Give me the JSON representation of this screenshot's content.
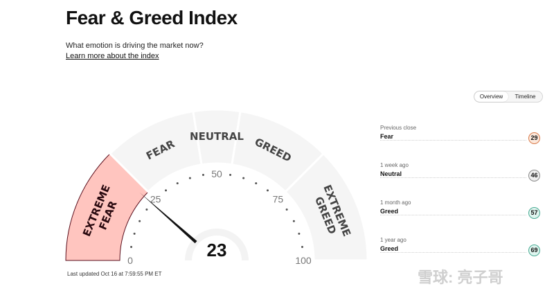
{
  "header": {
    "title": "Fear & Greed Index",
    "subtitle": "What emotion is driving the market now?",
    "learn_link": "Learn more about the index"
  },
  "view_toggle": {
    "options": [
      "Overview",
      "Timeline"
    ],
    "selected": "Overview"
  },
  "gauge": {
    "value": 23,
    "value_text": "23",
    "scale_min": 0,
    "scale_max": 100,
    "ticks": [
      "0",
      "25",
      "50",
      "75",
      "100"
    ],
    "segments": [
      {
        "label": "EXTREME FEAR",
        "from": 0,
        "to": 25,
        "active": true
      },
      {
        "label": "FEAR",
        "from": 25,
        "to": 45,
        "active": false
      },
      {
        "label": "NEUTRAL",
        "from": 45,
        "to": 55,
        "active": false
      },
      {
        "label": "GREED",
        "from": 55,
        "to": 75,
        "active": false
      },
      {
        "label": "EXTREME GREED",
        "from": 75,
        "to": 100,
        "active": false
      }
    ],
    "colors": {
      "inactive_fill": "#f5f5f5",
      "active_fill": "#ffc5bf",
      "active_stroke": "#5a0e1c",
      "needle": "#111111"
    }
  },
  "history": [
    {
      "label": "Previous close",
      "sentiment": "Fear",
      "value": "29",
      "badge_bg": "#fde9dc",
      "badge_border": "#d87a4a"
    },
    {
      "label": "1 week ago",
      "sentiment": "Neutral",
      "value": "46",
      "badge_bg": "#efefef",
      "badge_border": "#8a8a8a"
    },
    {
      "label": "1 month ago",
      "sentiment": "Greed",
      "value": "57",
      "badge_bg": "#dff5ef",
      "badge_border": "#4aab94"
    },
    {
      "label": "1 year ago",
      "sentiment": "Greed",
      "value": "69",
      "badge_bg": "#dff5ef",
      "badge_border": "#4aab94"
    }
  ],
  "footer": {
    "last_updated": "Last updated Oct 16 at 7:59:55 PM ET"
  },
  "watermark": {
    "text": "雪球: 亮子哥"
  }
}
